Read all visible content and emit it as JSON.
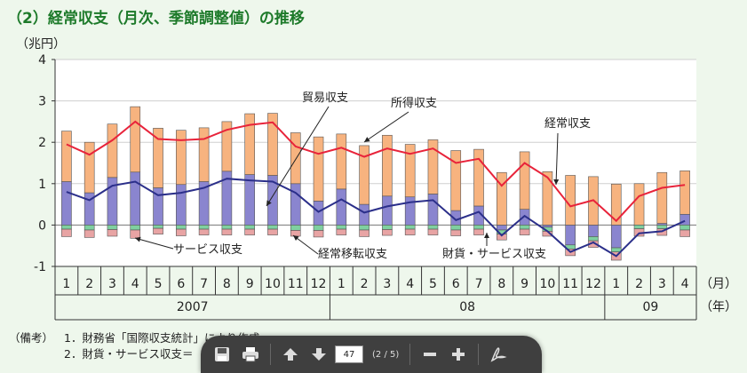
{
  "title": "（2）経常収支（月次、季節調整値）の推移",
  "chart_data": {
    "type": "bar",
    "stacked": true,
    "y_unit_label": "（兆円）",
    "ylim": [
      -1,
      4
    ],
    "y_ticks": [
      "4",
      "3",
      "2",
      "1",
      "0",
      "-1"
    ],
    "month_unit_label": "（月）",
    "year_unit_label": "（年）",
    "categories": [
      "1",
      "2",
      "3",
      "4",
      "5",
      "6",
      "7",
      "8",
      "9",
      "10",
      "11",
      "12",
      "1",
      "2",
      "3",
      "4",
      "5",
      "6",
      "7",
      "8",
      "9",
      "10",
      "11",
      "12",
      "1",
      "2",
      "3",
      "4"
    ],
    "years": [
      {
        "label": "2007",
        "start": 0,
        "count": 12
      },
      {
        "label": "08",
        "start": 12,
        "count": 12
      },
      {
        "label": "09",
        "start": 24,
        "count": 4
      }
    ],
    "series": [
      {
        "name": "貿易収支",
        "color": "#8a85cf",
        "values": [
          1.05,
          0.78,
          1.15,
          1.28,
          0.9,
          0.98,
          1.05,
          1.3,
          1.22,
          1.2,
          1.0,
          0.58,
          0.87,
          0.5,
          0.7,
          0.68,
          0.75,
          0.35,
          0.46,
          -0.12,
          0.38,
          -0.05,
          -0.48,
          -0.28,
          -0.55,
          0.0,
          0.04,
          0.26
        ]
      },
      {
        "name": "所得収支",
        "color": "#f7b37f",
        "values": [
          1.22,
          1.22,
          1.29,
          1.58,
          1.44,
          1.31,
          1.3,
          1.2,
          1.47,
          1.5,
          1.23,
          1.55,
          1.33,
          1.42,
          1.47,
          1.27,
          1.31,
          1.45,
          1.37,
          1.27,
          1.39,
          1.29,
          1.2,
          1.17,
          0.99,
          1.0,
          1.23,
          1.05
        ]
      },
      {
        "name": "経常移転収支",
        "color": "#7fd0a0",
        "values": [
          -0.1,
          -0.12,
          -0.11,
          -0.12,
          -0.08,
          -0.1,
          -0.1,
          -0.1,
          -0.1,
          -0.1,
          -0.13,
          -0.13,
          -0.1,
          -0.12,
          -0.11,
          -0.1,
          -0.1,
          -0.12,
          -0.1,
          -0.1,
          -0.1,
          -0.1,
          -0.1,
          -0.1,
          -0.1,
          -0.09,
          -0.09,
          -0.12
        ]
      },
      {
        "name": "サービス収支",
        "color": "#e8a4a4",
        "values": [
          -0.18,
          -0.18,
          -0.16,
          -0.2,
          -0.14,
          -0.16,
          -0.14,
          -0.14,
          -0.14,
          -0.14,
          -0.14,
          -0.16,
          -0.14,
          -0.16,
          -0.14,
          -0.14,
          -0.14,
          -0.14,
          -0.14,
          -0.14,
          -0.14,
          -0.12,
          -0.16,
          -0.16,
          -0.2,
          -0.18,
          -0.16,
          -0.16
        ]
      }
    ],
    "lines": [
      {
        "name": "経常収支",
        "color": "#e8233a",
        "values": [
          1.95,
          1.7,
          2.05,
          2.5,
          2.08,
          2.05,
          2.08,
          2.3,
          2.42,
          2.48,
          1.9,
          1.72,
          1.87,
          1.65,
          1.85,
          1.72,
          1.85,
          1.5,
          1.6,
          0.95,
          1.5,
          1.15,
          0.45,
          0.6,
          0.1,
          0.7,
          0.9,
          0.97
        ]
      },
      {
        "name": "財貨・サービス収支",
        "color": "#2b2f8a",
        "values": [
          0.8,
          0.6,
          0.95,
          1.05,
          0.72,
          0.78,
          0.9,
          1.12,
          1.08,
          1.05,
          0.78,
          0.32,
          0.62,
          0.3,
          0.45,
          0.55,
          0.6,
          0.12,
          0.32,
          -0.25,
          0.22,
          -0.15,
          -0.65,
          -0.42,
          -0.75,
          -0.2,
          -0.15,
          0.1
        ]
      }
    ],
    "annotations": [
      "貿易収支",
      "所得収支",
      "経常収支",
      "サービス収支",
      "経常移転収支",
      "財貨・サービス収支"
    ]
  },
  "notes": {
    "head": "（備考）",
    "items": [
      "1．財務省「国際収支統計」により作成。",
      "2．財貨・サービス収支＝"
    ]
  },
  "toolbar": {
    "page_value": "47",
    "page_count": "(2 / 5)",
    "icons": [
      "save-icon",
      "print-icon",
      "arrow-up-icon",
      "arrow-down-icon",
      "minus-icon",
      "plus-icon",
      "acrobat-icon"
    ]
  }
}
